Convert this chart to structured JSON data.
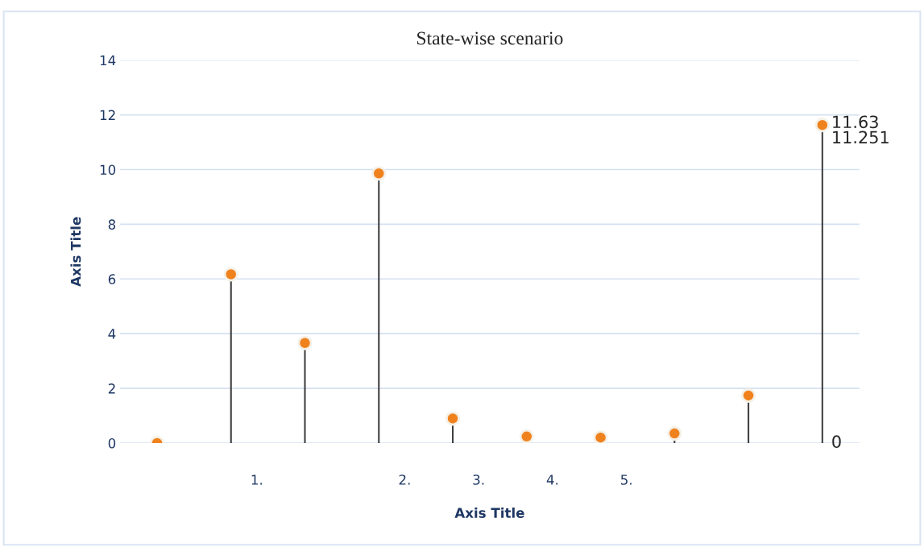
{
  "chart_data": {
    "type": "lollipop",
    "title": "State-wise scenario",
    "xlabel": "Axis Title",
    "ylabel": "Axis Title",
    "categories": [
      null,
      "1.",
      null,
      "2.",
      "3.",
      "4.",
      "5.",
      null,
      null,
      null
    ],
    "series": [
      {
        "color": "#f0821e",
        "values": [
          0,
          6.17,
          3.66,
          9.86,
          0.9,
          0.24,
          0.2,
          0.35,
          1.74,
          11.63
        ]
      }
    ],
    "ylim": [
      0,
      14
    ],
    "yticks": [
      0,
      2,
      4,
      6,
      8,
      10,
      12,
      14
    ],
    "grid": "y",
    "marker": "circle",
    "annotations": [
      "11.63",
      "11.251",
      "0"
    ]
  }
}
